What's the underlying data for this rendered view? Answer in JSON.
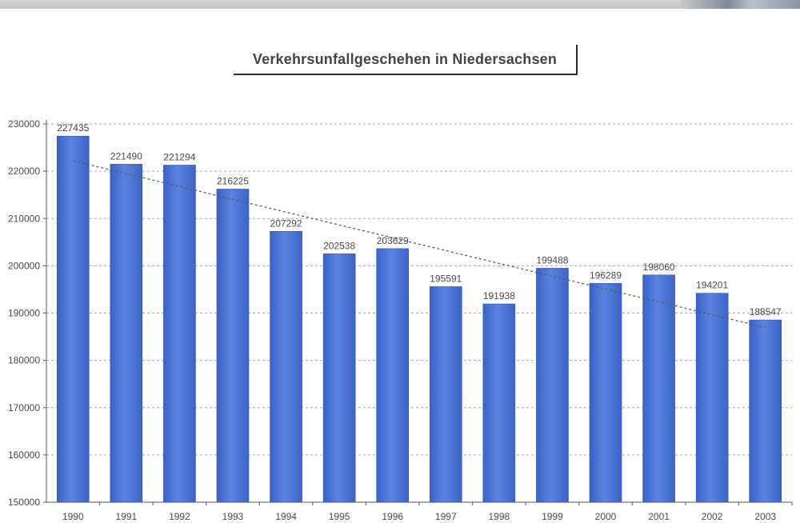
{
  "chart_data": {
    "type": "bar",
    "title": "Verkehrsunfallgeschehen in Niedersachsen",
    "categories": [
      "1990",
      "1991",
      "1992",
      "1993",
      "1994",
      "1995",
      "1996",
      "1997",
      "1998",
      "1999",
      "2000",
      "2001",
      "2002",
      "2003"
    ],
    "values": [
      227435,
      221490,
      221294,
      216225,
      207292,
      202538,
      203629,
      195591,
      191938,
      199488,
      196289,
      198060,
      194201,
      188547
    ],
    "value_labels": [
      "227435",
      "221490",
      "221294",
      "216225",
      "207292",
      "202538",
      "203629",
      "195591",
      "191938",
      "199488",
      "196289",
      "198060",
      "194201",
      "188547"
    ],
    "y_ticks": [
      "150000",
      "160000",
      "170000",
      "180000",
      "190000",
      "200000",
      "210000",
      "220000",
      "230000"
    ],
    "ylim": [
      150000,
      230000
    ],
    "grid": true,
    "trendline": true,
    "bar_color": "#4f77d4",
    "grid_color": "#9aa6d6",
    "trend_color": "#555555"
  }
}
